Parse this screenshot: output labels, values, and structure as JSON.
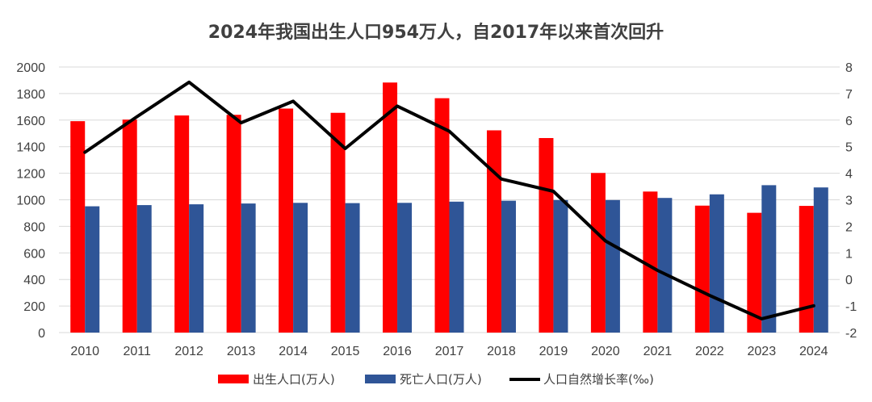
{
  "chart_data": {
    "type": "bar",
    "title": "2024年我国出生人口954万人，自2017年以来首次回升",
    "categories": [
      "2010",
      "2011",
      "2012",
      "2013",
      "2014",
      "2015",
      "2016",
      "2017",
      "2018",
      "2019",
      "2020",
      "2021",
      "2022",
      "2023",
      "2024"
    ],
    "series": [
      {
        "name": "出生人口(万人)",
        "type": "bar",
        "axis": "left",
        "color": "#ff0000",
        "values": [
          1592,
          1604,
          1635,
          1640,
          1687,
          1655,
          1883,
          1765,
          1523,
          1465,
          1202,
          1062,
          956,
          902,
          954
        ]
      },
      {
        "name": "死亡人口(万人)",
        "type": "bar",
        "axis": "left",
        "color": "#2f5597",
        "values": [
          951,
          960,
          966,
          972,
          977,
          975,
          977,
          986,
          993,
          998,
          998,
          1014,
          1041,
          1110,
          1093
        ]
      },
      {
        "name": "人口自然增长率(‰)",
        "type": "line",
        "axis": "right",
        "color": "#000000",
        "values": [
          4.79,
          6.13,
          7.43,
          5.9,
          6.71,
          4.93,
          6.53,
          5.58,
          3.78,
          3.32,
          1.45,
          0.34,
          -0.6,
          -1.48,
          -0.99
        ]
      }
    ],
    "ylim_left": [
      0,
      2000
    ],
    "yticks_left": [
      0,
      200,
      400,
      600,
      800,
      1000,
      1200,
      1400,
      1600,
      1800,
      2000
    ],
    "ylim_right": [
      -2,
      8
    ],
    "yticks_right": [
      -2,
      -1,
      0,
      1,
      2,
      3,
      4,
      5,
      6,
      7,
      8
    ],
    "grid": true,
    "legend_position": "bottom"
  }
}
